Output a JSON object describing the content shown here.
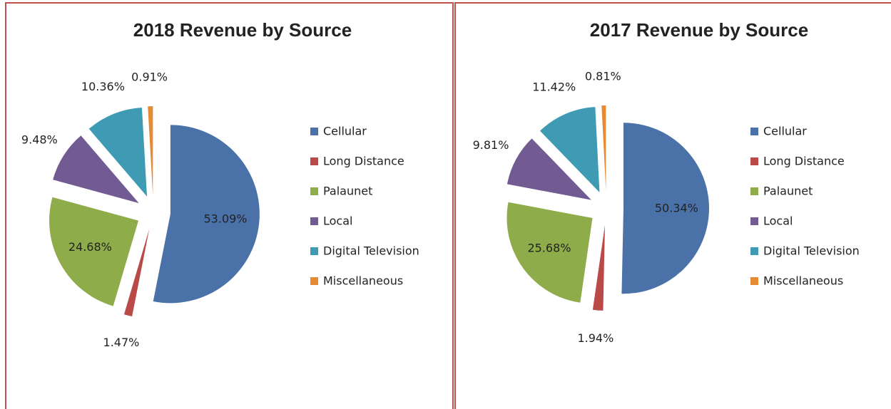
{
  "chart_data": [
    {
      "type": "pie",
      "title": "2018 Revenue by Source",
      "categories": [
        "Cellular",
        "Long Distance",
        "Palaunet",
        "Local",
        "Digital Television",
        "Miscellaneous"
      ],
      "values": [
        53.09,
        1.47,
        24.68,
        9.48,
        10.36,
        0.91
      ],
      "value_labels": [
        "53.09%",
        "1.47%",
        "24.68%",
        "9.48%",
        "10.36%",
        "0.91%"
      ],
      "colors": [
        "#4a72a8",
        "#b94a48",
        "#8fac4a",
        "#725a92",
        "#3e9bb3",
        "#e58a35"
      ],
      "legend": "right"
    },
    {
      "type": "pie",
      "title": "2017 Revenue by Source",
      "categories": [
        "Cellular",
        "Long Distance",
        "Palaunet",
        "Local",
        "Digital Television",
        "Miscellaneous"
      ],
      "values": [
        50.34,
        1.94,
        25.68,
        9.81,
        11.42,
        0.81
      ],
      "value_labels": [
        "50.34%",
        "1.94%",
        "25.68%",
        "9.81%",
        "11.42%",
        "0.81%"
      ],
      "colors": [
        "#4a72a8",
        "#b94a48",
        "#8fac4a",
        "#725a92",
        "#3e9bb3",
        "#e58a35"
      ],
      "legend": "right"
    }
  ]
}
